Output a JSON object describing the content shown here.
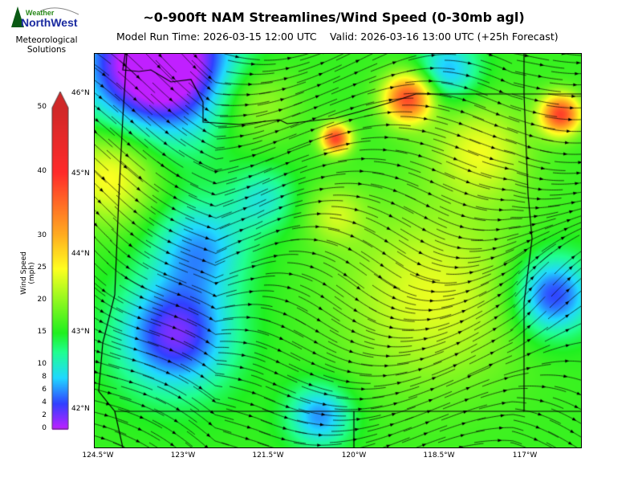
{
  "header": {
    "title": "~0-900ft NAM Streamlines/Wind Speed (0-30mb agl)",
    "model_run": "Model Run Time: 2026-03-15 12:00 UTC",
    "valid": "Valid: 2026-03-16 13:00 UTC  (+25h Forecast)"
  },
  "logo": {
    "text_top": "Weather",
    "text_main": "NorthWest",
    "subtitle_line1": "Meteorological",
    "subtitle_line2": "Solutions"
  },
  "colorbar": {
    "label": "Wind Speed (mph)",
    "ticks": [
      "0",
      "2",
      "4",
      "6",
      "8",
      "10",
      "15",
      "20",
      "25",
      "30",
      "40",
      "50"
    ],
    "range": [
      0,
      50
    ],
    "extend": "max",
    "colors": {
      "0": "#c020ff",
      "4": "#3040ff",
      "8": "#20d8ff",
      "12": "#20ff90",
      "15": "#20f020",
      "25": "#ffff20",
      "30": "#ffb020",
      "40": "#ff2a2a",
      "50": "#d02828"
    }
  },
  "map": {
    "lat_labels": [
      "46°N",
      "45°N",
      "44°N",
      "43°N",
      "42°N"
    ],
    "lon_labels": [
      "124.5°W",
      "123°W",
      "121.5°W",
      "120°W",
      "118.5°W",
      "117°W"
    ],
    "field": "wind speed (mph) with streamlines"
  }
}
